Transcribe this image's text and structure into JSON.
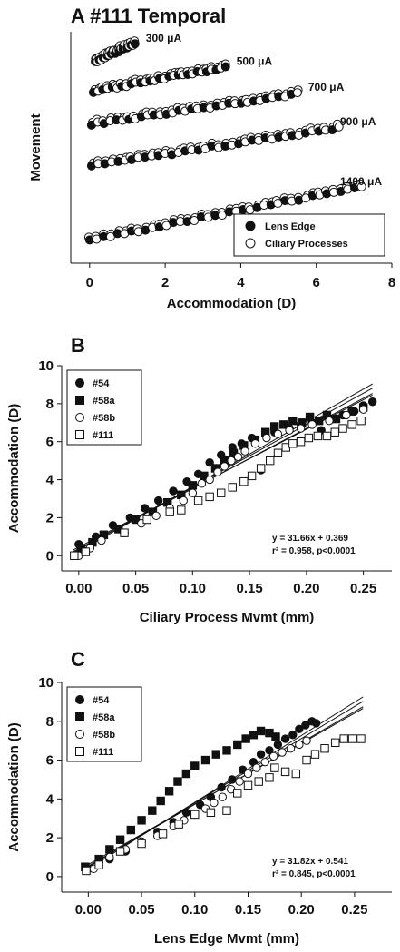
{
  "figure": {
    "panel_a": {
      "title": "A #111 Temporal"
    },
    "panel_b": {
      "letter": "B"
    },
    "panel_c": {
      "letter": "C"
    }
  },
  "chart_data": [
    {
      "id": "A",
      "type": "scatter",
      "title": "A #111 Temporal",
      "xlabel": "Accommodation (D)",
      "ylabel": "Movement",
      "xlim": [
        -0.5,
        8
      ],
      "xticks": [
        0,
        2,
        4,
        6,
        8
      ],
      "y_ticks_shown": false,
      "legend": {
        "position": "bottom-right",
        "entries": [
          {
            "name": "Lens Edge",
            "marker": "filled-circle"
          },
          {
            "name": "Ciliary Processes",
            "marker": "open-circle"
          }
        ]
      },
      "groups": [
        {
          "label": "300 μA",
          "x_range": [
            0.15,
            1.2
          ],
          "base": 0.86,
          "slope": 0.075
        },
        {
          "label": "500 μA",
          "x_range": [
            0.1,
            3.6
          ],
          "base": 0.74,
          "slope": 0.03
        },
        {
          "label": "700 μA",
          "x_range": [
            0.05,
            5.5
          ],
          "base": 0.6,
          "slope": 0.024
        },
        {
          "label": "900 μA",
          "x_range": [
            0.05,
            6.6
          ],
          "base": 0.42,
          "slope": 0.025
        },
        {
          "label": "1400 μA",
          "x_range": [
            0.0,
            7.2
          ],
          "base": 0.1,
          "slope": 0.032
        }
      ]
    },
    {
      "id": "B",
      "type": "scatter",
      "xlabel": "Ciliary Process Mvmt (mm)",
      "ylabel": "Accommodation (D)",
      "xlim": [
        -0.015,
        0.275
      ],
      "ylim": [
        -0.8,
        10
      ],
      "xticks": [
        0.0,
        0.05,
        0.1,
        0.15,
        0.2,
        0.25
      ],
      "xtick_labels": [
        "0.00",
        "0.05",
        "0.10",
        "0.15",
        "0.20",
        "0.25"
      ],
      "yticks": [
        0,
        2,
        4,
        6,
        8,
        10
      ],
      "legend": {
        "position": "top-left"
      },
      "annotation": {
        "line1": "y = 31.66x + 0.369",
        "line2": "r² = 0.958, p<0.0001"
      },
      "fit": {
        "slope": 31.66,
        "intercept": 0.369
      },
      "series": [
        {
          "name": "#54",
          "marker": "filled-circle",
          "points": [
            [
              0.0,
              0.6
            ],
            [
              0.015,
              1.0
            ],
            [
              0.03,
              1.6
            ],
            [
              0.045,
              2.0
            ],
            [
              0.058,
              2.5
            ],
            [
              0.07,
              2.9
            ],
            [
              0.083,
              3.4
            ],
            [
              0.095,
              3.9
            ],
            [
              0.105,
              4.3
            ],
            [
              0.115,
              4.9
            ],
            [
              0.125,
              5.3
            ],
            [
              0.135,
              5.7
            ],
            [
              0.143,
              5.9
            ],
            [
              0.152,
              6.2
            ],
            [
              0.16,
              4.5
            ],
            [
              0.172,
              6.5
            ],
            [
              0.185,
              6.7
            ],
            [
              0.195,
              6.9
            ],
            [
              0.205,
              7.0
            ],
            [
              0.213,
              6.6
            ],
            [
              0.222,
              7.2
            ],
            [
              0.232,
              7.4
            ],
            [
              0.242,
              7.6
            ],
            [
              0.25,
              7.9
            ],
            [
              0.258,
              8.1
            ]
          ]
        },
        {
          "name": "#58a",
          "marker": "filled-square",
          "points": [
            [
              0.002,
              0.3
            ],
            [
              0.012,
              0.7
            ],
            [
              0.022,
              1.1
            ],
            [
              0.035,
              1.4
            ],
            [
              0.05,
              1.9
            ],
            [
              0.065,
              2.3
            ],
            [
              0.078,
              2.8
            ],
            [
              0.09,
              3.2
            ],
            [
              0.1,
              3.7
            ],
            [
              0.11,
              4.2
            ],
            [
              0.12,
              4.6
            ],
            [
              0.128,
              5.0
            ],
            [
              0.136,
              5.4
            ],
            [
              0.145,
              5.8
            ],
            [
              0.155,
              6.1
            ],
            [
              0.164,
              6.5
            ],
            [
              0.172,
              6.8
            ],
            [
              0.18,
              6.9
            ],
            [
              0.188,
              7.1
            ],
            [
              0.196,
              7.0
            ],
            [
              0.203,
              7.3
            ],
            [
              0.211,
              7.1
            ],
            [
              0.218,
              7.4
            ],
            [
              0.226,
              7.2
            ],
            [
              0.24,
              7.6
            ],
            [
              0.25,
              7.8
            ]
          ]
        },
        {
          "name": "#58b",
          "marker": "open-circle",
          "points": [
            [
              0.0,
              0.0
            ],
            [
              0.01,
              0.4
            ],
            [
              0.02,
              0.8
            ],
            [
              0.04,
              1.2
            ],
            [
              0.055,
              1.7
            ],
            [
              0.068,
              2.1
            ],
            [
              0.08,
              2.5
            ],
            [
              0.092,
              2.9
            ],
            [
              0.1,
              3.3
            ],
            [
              0.108,
              3.8
            ],
            [
              0.115,
              4.0
            ],
            [
              0.122,
              4.4
            ],
            [
              0.128,
              4.7
            ],
            [
              0.134,
              5.0
            ],
            [
              0.14,
              5.2
            ],
            [
              0.146,
              5.5
            ],
            [
              0.155,
              5.9
            ],
            [
              0.165,
              6.2
            ],
            [
              0.175,
              6.4
            ],
            [
              0.185,
              6.6
            ],
            [
              0.195,
              6.7
            ],
            [
              0.205,
              6.9
            ],
            [
              0.22,
              7.1
            ],
            [
              0.235,
              7.4
            ],
            [
              0.25,
              7.7
            ]
          ]
        },
        {
          "name": "#111",
          "marker": "open-square",
          "points": [
            [
              -0.004,
              0.0
            ],
            [
              0.006,
              0.2
            ],
            [
              0.04,
              1.2
            ],
            [
              0.06,
              1.9
            ],
            [
              0.08,
              2.3
            ],
            [
              0.09,
              2.4
            ],
            [
              0.105,
              2.9
            ],
            [
              0.115,
              3.1
            ],
            [
              0.125,
              3.3
            ],
            [
              0.135,
              3.6
            ],
            [
              0.145,
              3.9
            ],
            [
              0.152,
              4.2
            ],
            [
              0.16,
              4.6
            ],
            [
              0.168,
              5.0
            ],
            [
              0.175,
              5.4
            ],
            [
              0.182,
              5.7
            ],
            [
              0.188,
              5.9
            ],
            [
              0.195,
              6.0
            ],
            [
              0.202,
              6.2
            ],
            [
              0.21,
              6.3
            ],
            [
              0.218,
              6.3
            ],
            [
              0.225,
              6.5
            ],
            [
              0.232,
              6.7
            ],
            [
              0.24,
              6.9
            ],
            [
              0.248,
              7.1
            ]
          ]
        }
      ]
    },
    {
      "id": "C",
      "type": "scatter",
      "xlabel": "Lens Edge Mvmt (mm)",
      "ylabel": "Accommodation (D)",
      "xlim": [
        -0.025,
        0.285
      ],
      "ylim": [
        -0.8,
        10
      ],
      "xticks": [
        0.0,
        0.05,
        0.1,
        0.15,
        0.2,
        0.25
      ],
      "xtick_labels": [
        "0.00",
        "0.05",
        "0.10",
        "0.15",
        "0.20",
        "0.25"
      ],
      "yticks": [
        0,
        2,
        4,
        6,
        8,
        10
      ],
      "legend": {
        "position": "top-left"
      },
      "annotation": {
        "line1": "y = 31.82x + 0.541",
        "line2": "r² = 0.845, p<0.0001"
      },
      "fit": {
        "slope": 31.82,
        "intercept": 0.541
      },
      "series": [
        {
          "name": "#54",
          "marker": "filled-circle",
          "points": [
            [
              0.0,
              0.4
            ],
            [
              0.02,
              0.9
            ],
            [
              0.035,
              1.3
            ],
            [
              0.05,
              1.8
            ],
            [
              0.065,
              2.3
            ],
            [
              0.08,
              2.8
            ],
            [
              0.092,
              3.3
            ],
            [
              0.105,
              3.7
            ],
            [
              0.115,
              4.1
            ],
            [
              0.125,
              4.6
            ],
            [
              0.135,
              5.0
            ],
            [
              0.145,
              5.5
            ],
            [
              0.155,
              5.9
            ],
            [
              0.162,
              6.3
            ],
            [
              0.17,
              6.5
            ],
            [
              0.178,
              6.8
            ],
            [
              0.185,
              7.1
            ],
            [
              0.192,
              7.3
            ],
            [
              0.198,
              7.6
            ],
            [
              0.204,
              7.8
            ],
            [
              0.21,
              8.0
            ],
            [
              0.214,
              7.9
            ]
          ]
        },
        {
          "name": "#58a",
          "marker": "filled-square",
          "points": [
            [
              -0.003,
              0.5
            ],
            [
              0.01,
              0.9
            ],
            [
              0.02,
              1.4
            ],
            [
              0.03,
              1.9
            ],
            [
              0.04,
              2.4
            ],
            [
              0.05,
              2.9
            ],
            [
              0.06,
              3.4
            ],
            [
              0.068,
              3.9
            ],
            [
              0.076,
              4.4
            ],
            [
              0.084,
              4.9
            ],
            [
              0.092,
              5.3
            ],
            [
              0.1,
              5.7
            ],
            [
              0.11,
              6.0
            ],
            [
              0.12,
              6.3
            ],
            [
              0.13,
              6.5
            ],
            [
              0.14,
              6.8
            ],
            [
              0.148,
              7.1
            ],
            [
              0.155,
              7.3
            ],
            [
              0.162,
              7.5
            ],
            [
              0.17,
              7.4
            ],
            [
              0.176,
              7.2
            ]
          ]
        },
        {
          "name": "#58b",
          "marker": "open-circle",
          "points": [
            [
              0.005,
              0.4
            ],
            [
              0.02,
              1.0
            ],
            [
              0.035,
              1.4
            ],
            [
              0.05,
              1.8
            ],
            [
              0.065,
              2.1
            ],
            [
              0.08,
              2.6
            ],
            [
              0.09,
              2.9
            ],
            [
              0.1,
              3.2
            ],
            [
              0.11,
              3.5
            ],
            [
              0.118,
              3.8
            ],
            [
              0.126,
              4.1
            ],
            [
              0.134,
              4.5
            ],
            [
              0.142,
              4.9
            ],
            [
              0.15,
              5.3
            ],
            [
              0.158,
              5.6
            ],
            [
              0.166,
              5.9
            ],
            [
              0.174,
              6.2
            ],
            [
              0.182,
              6.4
            ],
            [
              0.19,
              6.6
            ],
            [
              0.198,
              6.8
            ],
            [
              0.205,
              7.0
            ]
          ]
        },
        {
          "name": "#111",
          "marker": "open-square",
          "points": [
            [
              -0.002,
              0.3
            ],
            [
              0.01,
              0.6
            ],
            [
              0.03,
              1.3
            ],
            [
              0.05,
              1.7
            ],
            [
              0.07,
              2.2
            ],
            [
              0.085,
              2.7
            ],
            [
              0.1,
              3.2
            ],
            [
              0.115,
              3.3
            ],
            [
              0.13,
              3.4
            ],
            [
              0.14,
              4.3
            ],
            [
              0.15,
              4.7
            ],
            [
              0.16,
              4.9
            ],
            [
              0.17,
              5.1
            ],
            [
              0.175,
              5.6
            ],
            [
              0.185,
              5.4
            ],
            [
              0.195,
              5.3
            ],
            [
              0.205,
              6.0
            ],
            [
              0.213,
              6.3
            ],
            [
              0.222,
              6.6
            ],
            [
              0.232,
              6.9
            ],
            [
              0.24,
              7.1
            ],
            [
              0.248,
              7.1
            ],
            [
              0.256,
              7.1
            ]
          ]
        }
      ]
    }
  ]
}
